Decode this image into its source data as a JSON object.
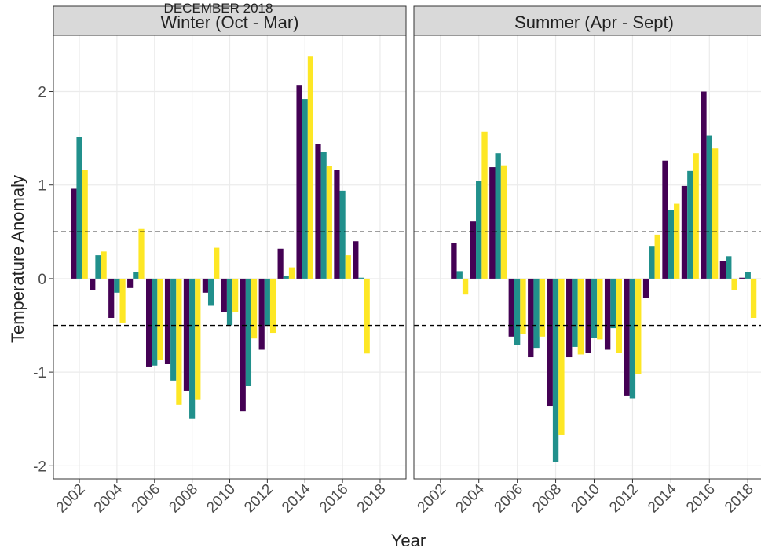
{
  "title": "DECEMBER 2018",
  "y_label": "Temperature Anomaly",
  "x_label": "Year",
  "chart_data": [
    {
      "type": "bar",
      "title": "Winter (Oct - Mar)",
      "x": [
        2002,
        2003,
        2004,
        2005,
        2006,
        2007,
        2008,
        2009,
        2010,
        2011,
        2012,
        2013,
        2014,
        2015,
        2016,
        2017
      ],
      "series": [
        {
          "color": "#440154",
          "values": [
            0.96,
            -0.12,
            -0.42,
            -0.1,
            -0.94,
            -0.91,
            -1.2,
            -0.15,
            -0.36,
            -1.42,
            -0.76,
            0.32,
            2.07,
            1.44,
            1.16,
            0.4
          ]
        },
        {
          "color": "#21908c",
          "values": [
            1.51,
            0.25,
            -0.15,
            0.07,
            -0.93,
            -1.09,
            -1.5,
            -0.29,
            -0.5,
            -1.15,
            -0.5,
            0.03,
            1.92,
            1.35,
            0.94,
            0.01
          ]
        },
        {
          "color": "#fde725",
          "values": [
            1.16,
            0.29,
            -0.47,
            0.53,
            -0.87,
            -1.35,
            -1.29,
            0.33,
            -0.36,
            -0.64,
            -0.58,
            0.12,
            2.38,
            1.2,
            0.25,
            -0.8
          ]
        }
      ],
      "xlim": [
        2000.62,
        2019.38
      ],
      "xticks": [
        2002,
        2004,
        2006,
        2008,
        2010,
        2012,
        2014,
        2016,
        2018
      ],
      "ylim": [
        -2.14,
        2.6
      ],
      "yticks": [
        -2,
        -1,
        0,
        1,
        2
      ],
      "grid": true,
      "hlines": [
        0.5,
        -0.5
      ]
    },
    {
      "type": "bar",
      "title": "Summer (Apr - Sept)",
      "x": [
        2003,
        2004,
        2005,
        2006,
        2007,
        2008,
        2009,
        2010,
        2011,
        2012,
        2013,
        2014,
        2015,
        2016,
        2017,
        2018
      ],
      "series": [
        {
          "color": "#440154",
          "values": [
            0.38,
            0.61,
            1.19,
            -0.62,
            -0.84,
            -1.36,
            -0.84,
            -0.79,
            -0.76,
            -1.25,
            -0.21,
            1.26,
            0.99,
            2.0,
            0.19,
            0.01
          ]
        },
        {
          "color": "#21908c",
          "values": [
            0.08,
            1.04,
            1.34,
            -0.71,
            -0.74,
            -1.96,
            -0.73,
            -0.63,
            -0.53,
            -1.28,
            0.35,
            0.73,
            1.15,
            1.53,
            0.24,
            0.07
          ]
        },
        {
          "color": "#fde725",
          "values": [
            -0.17,
            1.57,
            1.21,
            -0.59,
            -0.62,
            -1.67,
            -0.81,
            -0.65,
            -0.79,
            -1.02,
            0.47,
            0.8,
            1.34,
            1.39,
            -0.12,
            -0.42
          ]
        }
      ],
      "xlim": [
        2000.62,
        2019.38
      ],
      "xticks": [
        2002,
        2004,
        2006,
        2008,
        2010,
        2012,
        2014,
        2016,
        2018
      ],
      "ylim": [
        -2.14,
        2.6
      ],
      "yticks": [
        -2,
        -1,
        0,
        1,
        2
      ],
      "grid": true,
      "hlines": [
        0.5,
        -0.5
      ]
    }
  ]
}
